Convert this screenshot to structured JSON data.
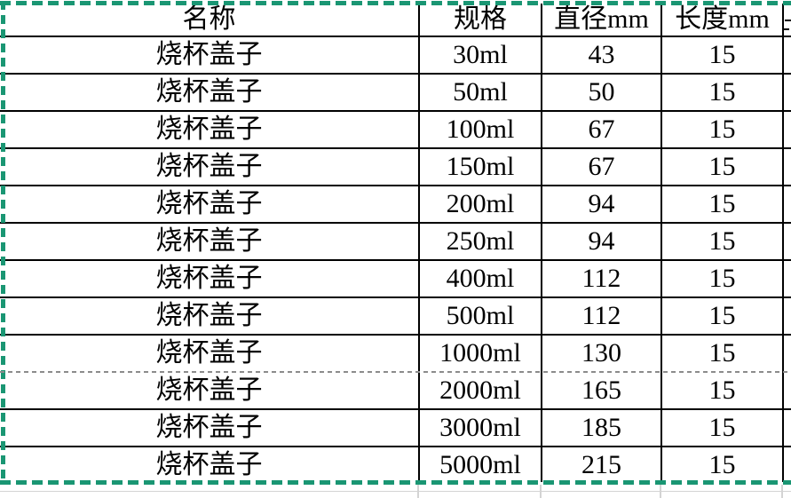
{
  "colors": {
    "background": "#ffffff",
    "text_black": "#000000",
    "border_black": "#000000",
    "print_area_green": "#1a9673",
    "page_break_gray": "#8c8c8c",
    "faint_grid": "#d4d4d4"
  },
  "table": {
    "headers": [
      {
        "key": "name",
        "label": "名称"
      },
      {
        "key": "spec",
        "label": "规格"
      },
      {
        "key": "diameter",
        "label": "直径mm"
      },
      {
        "key": "length",
        "label": "长度mm"
      },
      {
        "key": "extra",
        "label": "",
        "clipped": true
      }
    ],
    "rows": [
      {
        "name": "烧杯盖子",
        "spec": "30ml",
        "diameter": "43",
        "length": "15",
        "extra": "",
        "page_break_after": false
      },
      {
        "name": "烧杯盖子",
        "spec": "50ml",
        "diameter": "50",
        "length": "15",
        "extra": "",
        "page_break_after": false
      },
      {
        "name": "烧杯盖子",
        "spec": "100ml",
        "diameter": "67",
        "length": "15",
        "extra": "",
        "page_break_after": false
      },
      {
        "name": "烧杯盖子",
        "spec": "150ml",
        "diameter": "67",
        "length": "15",
        "extra": "",
        "page_break_after": false
      },
      {
        "name": "烧杯盖子",
        "spec": "200ml",
        "diameter": "94",
        "length": "15",
        "extra": "",
        "page_break_after": false
      },
      {
        "name": "烧杯盖子",
        "spec": "250ml",
        "diameter": "94",
        "length": "15",
        "extra": "",
        "page_break_after": false
      },
      {
        "name": "烧杯盖子",
        "spec": "400ml",
        "diameter": "112",
        "length": "15",
        "extra": "",
        "page_break_after": false
      },
      {
        "name": "烧杯盖子",
        "spec": "500ml",
        "diameter": "112",
        "length": "15",
        "extra": "",
        "page_break_after": false
      },
      {
        "name": "烧杯盖子",
        "spec": "1000ml",
        "diameter": "130",
        "length": "15",
        "extra": "",
        "page_break_after": true
      },
      {
        "name": "烧杯盖子",
        "spec": "2000ml",
        "diameter": "165",
        "length": "15",
        "extra": "",
        "page_break_after": false
      },
      {
        "name": "烧杯盖子",
        "spec": "3000ml",
        "diameter": "185",
        "length": "15",
        "extra": "",
        "page_break_after": false
      },
      {
        "name": "烧杯盖子",
        "spec": "5000ml",
        "diameter": "215",
        "length": "15",
        "extra": "",
        "page_break_after": false
      }
    ]
  },
  "print_layout": {
    "print_area_border_style": "green-dashed",
    "page_break_line_style": "gray-dashed",
    "page_break_after_spec": "1000ml"
  }
}
